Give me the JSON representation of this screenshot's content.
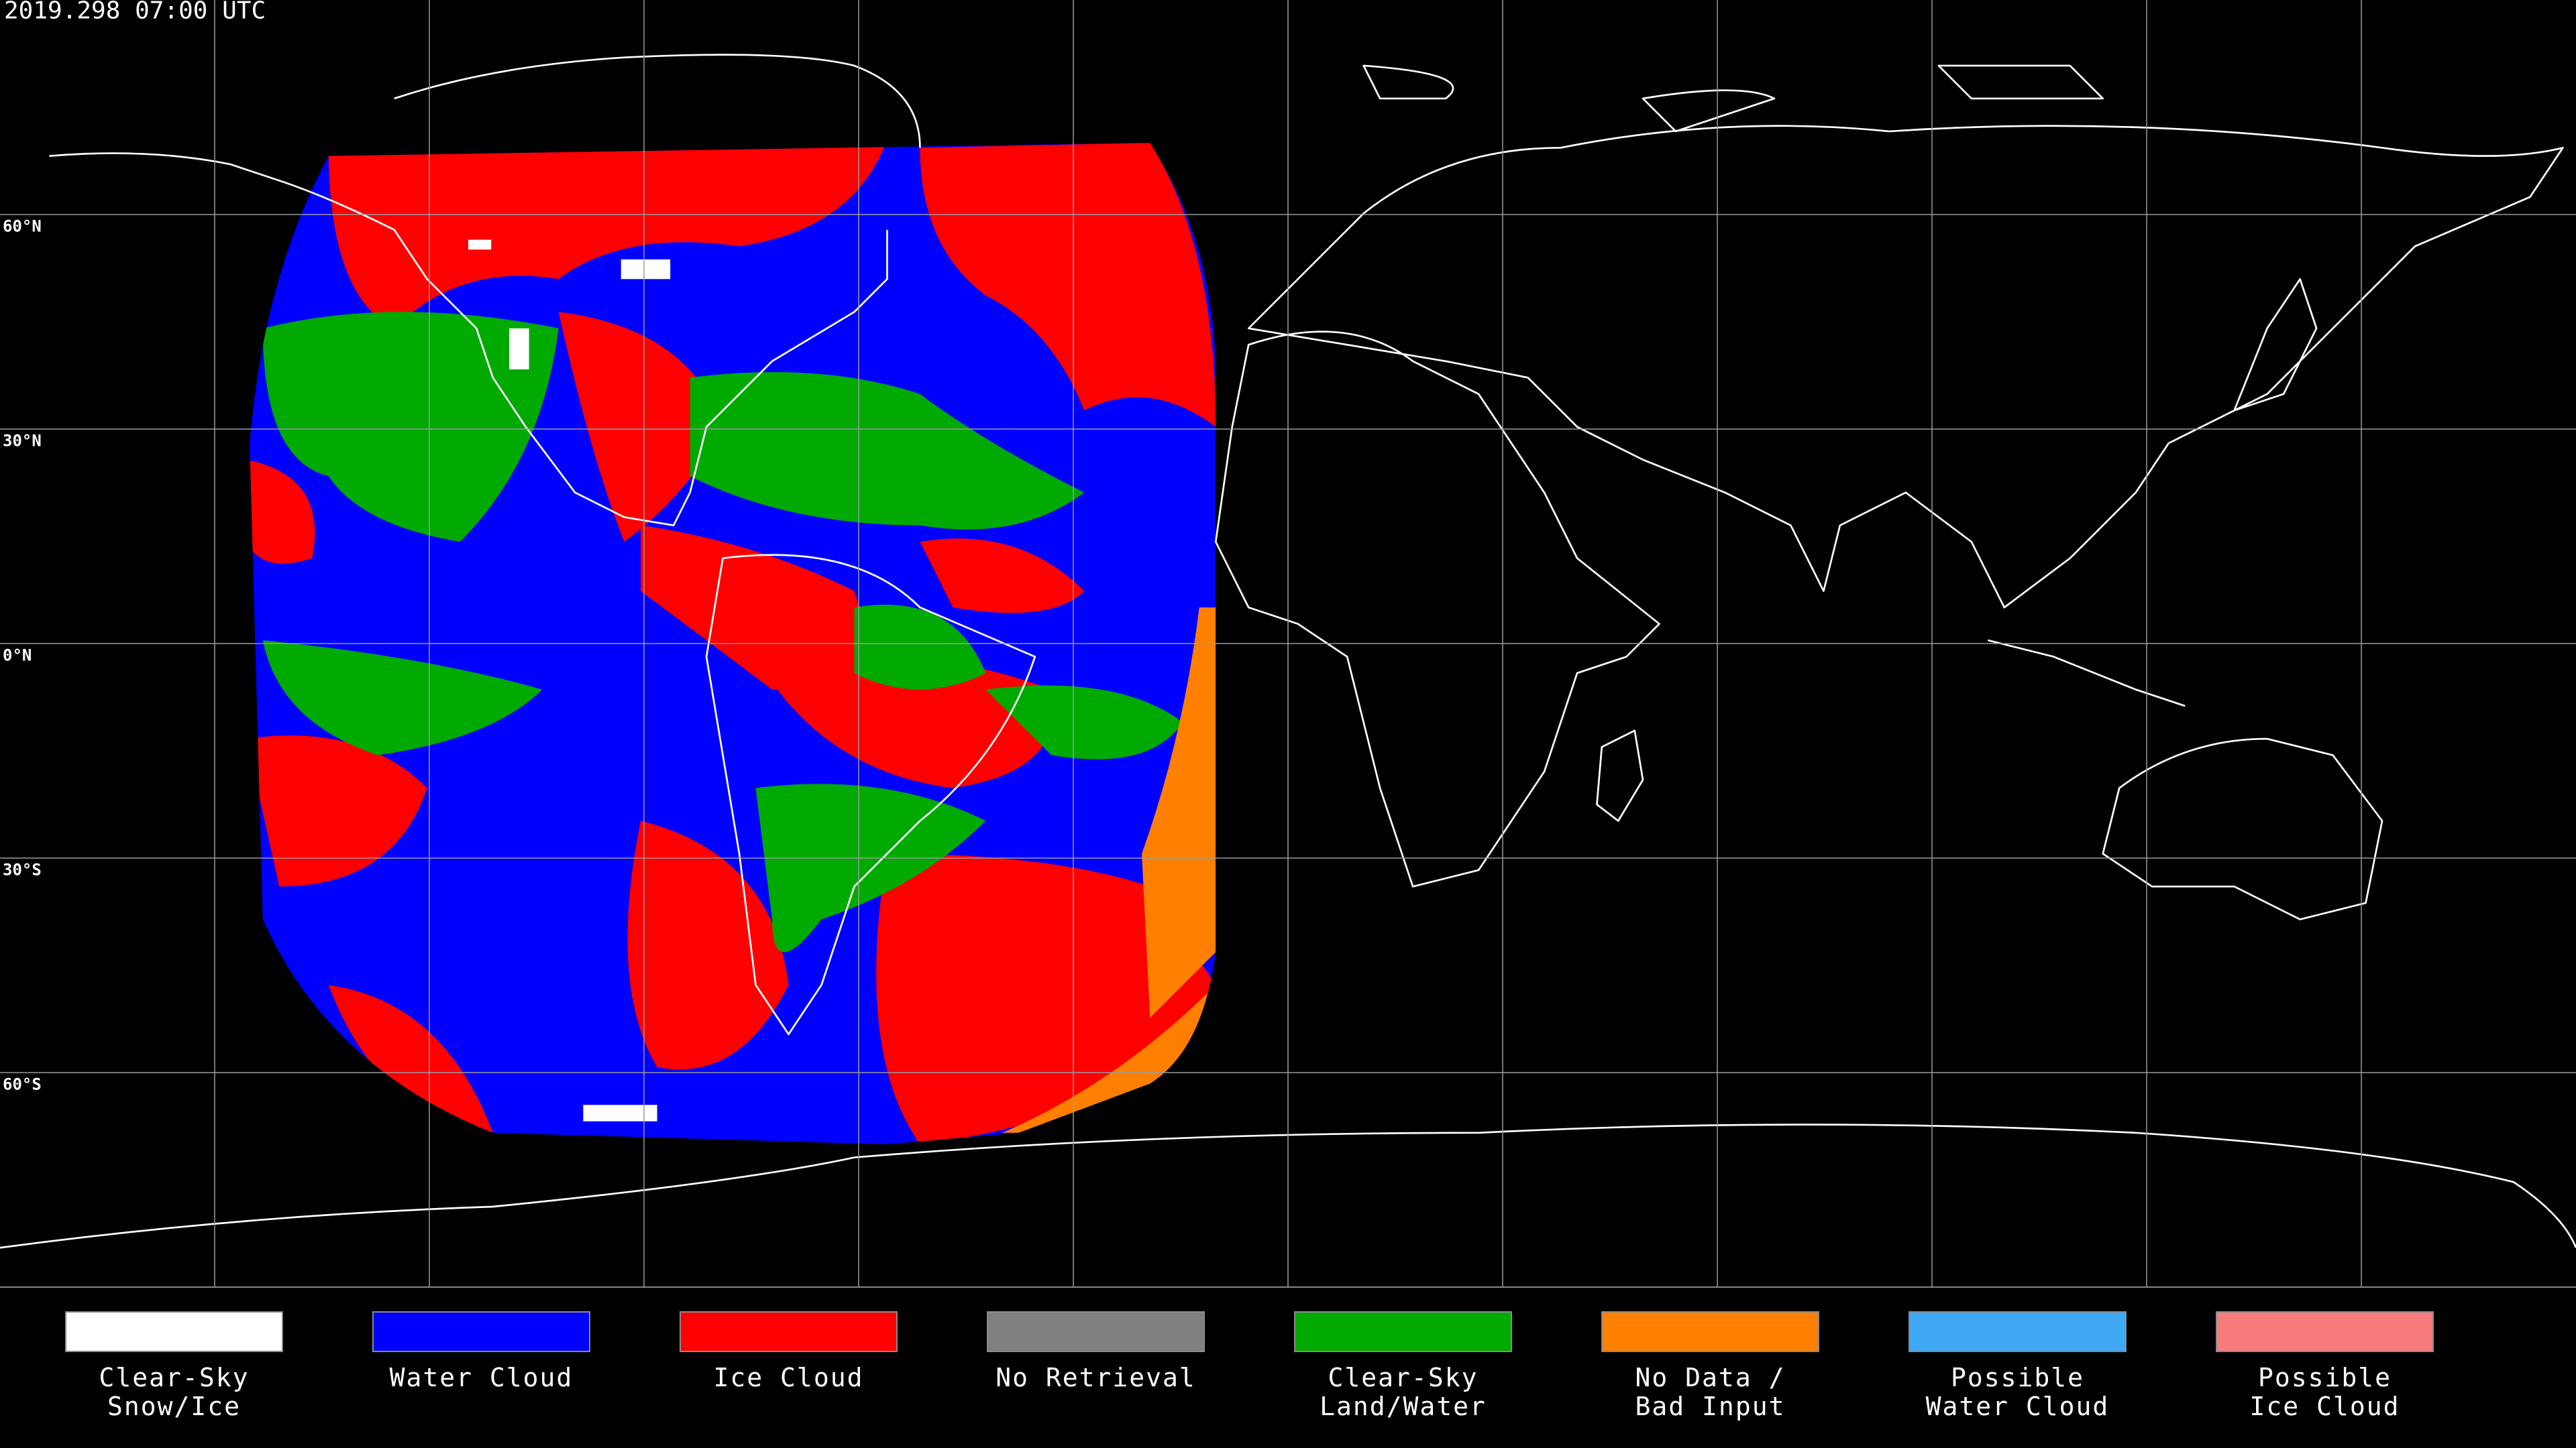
{
  "title": "2019.298 07:00 UTC",
  "lat_labels": [
    "60°N",
    "30°N",
    "0°N",
    "30°S",
    "60°S"
  ],
  "legend": [
    {
      "label": [
        "Clear-Sky",
        "Snow/Ice"
      ],
      "color": "#ffffff"
    },
    {
      "label": [
        "Water Cloud"
      ],
      "color": "#0000ff"
    },
    {
      "label": [
        "Ice Cloud"
      ],
      "color": "#ff0000"
    },
    {
      "label": [
        "No Retrieval"
      ],
      "color": "#808080"
    },
    {
      "label": [
        "Clear-Sky",
        "Land/Water"
      ],
      "color": "#00aa00"
    },
    {
      "label": [
        "No Data /",
        "Bad Input"
      ],
      "color": "#ff8000"
    },
    {
      "label": [
        "Possible",
        "Water Cloud"
      ],
      "color": "#3fa9f5"
    },
    {
      "label": [
        "Possible",
        "Ice Cloud"
      ],
      "color": "#f77b7b"
    }
  ]
}
